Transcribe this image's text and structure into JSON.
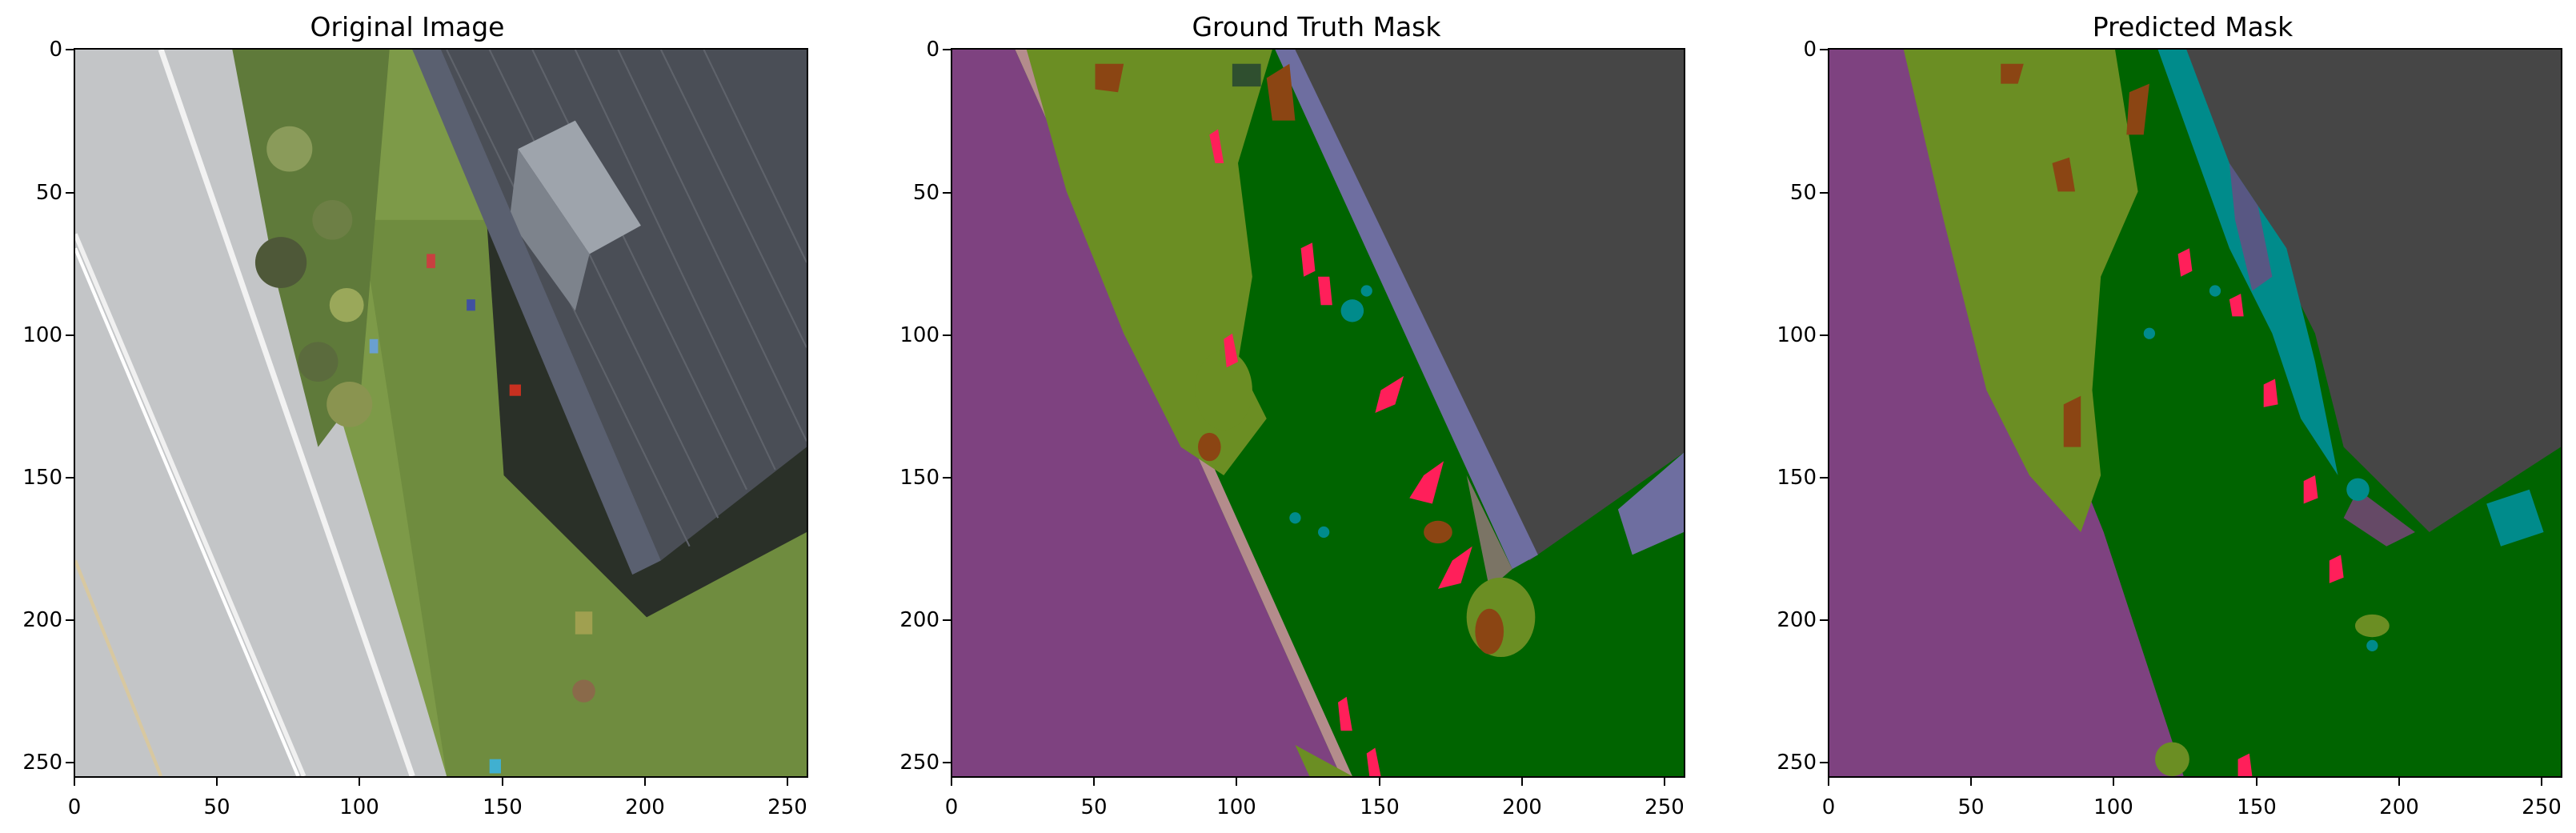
{
  "figure": {
    "panels": [
      {
        "id": "original",
        "title": "Original Image"
      },
      {
        "id": "ground-truth",
        "title": "Ground Truth Mask"
      },
      {
        "id": "predicted",
        "title": "Predicted Mask"
      }
    ],
    "axis": {
      "x_ticks": [
        "0",
        "50",
        "100",
        "150",
        "200",
        "250"
      ],
      "y_ticks": [
        "0",
        "50",
        "100",
        "150",
        "200",
        "250"
      ],
      "xlim": [
        0,
        256
      ],
      "ylim": [
        256,
        0
      ]
    },
    "class_colors": {
      "road": "#7e4280",
      "low_vegetation": "#6b8e23",
      "grass": "#006400",
      "roof": "#464646",
      "wall": "#6e6ea0",
      "tree": "#8b4513",
      "person": "#ff1f5a",
      "object": "#008b8b",
      "curb": "#b48c8c",
      "paved": "#7b7465"
    }
  }
}
